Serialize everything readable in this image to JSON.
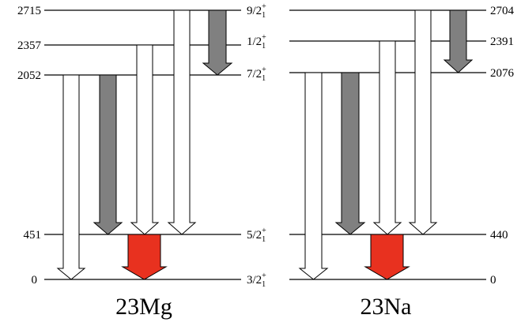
{
  "nuclei": [
    {
      "name": "23Mg",
      "levels": [
        {
          "energy": "2715"
        },
        {
          "energy": "2357"
        },
        {
          "energy": "2052"
        },
        {
          "energy": "451"
        },
        {
          "energy": "0"
        }
      ]
    },
    {
      "name": "23Na",
      "levels": [
        {
          "energy": "2704"
        },
        {
          "energy": "2391"
        },
        {
          "energy": "2076"
        },
        {
          "energy": "440"
        },
        {
          "energy": "0"
        }
      ]
    }
  ],
  "spins": [
    {
      "j": "9/2",
      "sub": "1",
      "sup": "+"
    },
    {
      "j": "1/2",
      "sub": "1",
      "sup": "+"
    },
    {
      "j": "7/2",
      "sub": "1",
      "sup": "+"
    },
    {
      "j": "5/2",
      "sub": "1",
      "sup": "+"
    },
    {
      "j": "3/2",
      "sub": "1",
      "sup": "+"
    }
  ],
  "colors": {
    "transition_white": "#ffffff",
    "transition_gray": "#808080",
    "transition_red": "#e8311f",
    "line": "#000000"
  }
}
